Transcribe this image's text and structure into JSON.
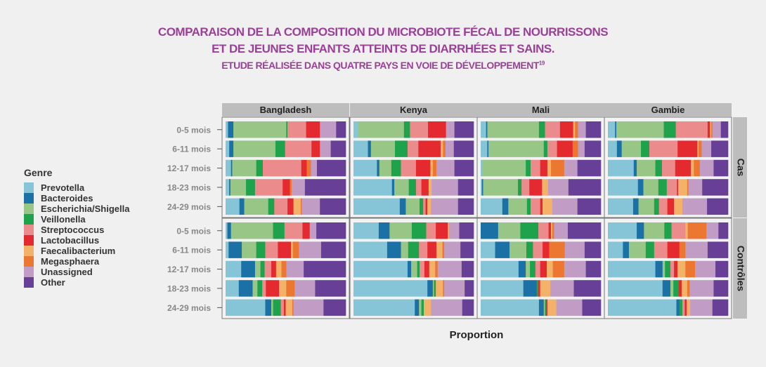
{
  "chart_data": {
    "type": "bar",
    "orientation": "horizontal",
    "stacked": true,
    "title": "COMPARAISON DE LA COMPOSITION DU MICROBIOTE FÉCAL DE NOURRISSONS",
    "title_line2": "ET DE JEUNES ENFANTS ATTEINTS DE DIARRHÉES ET SAINS.",
    "subtitle": "ETUDE RÉALISÉE DANS QUATRE PAYS EN VOIE DE DÉVELOPPEMENT",
    "subtitle_ref": "19",
    "xlabel": "Proportion",
    "xlim": [
      0,
      100
    ],
    "legend_title": "Genre",
    "legend_position": "left",
    "genera": [
      "Prevotella",
      "Bacteroides",
      "Escherichia/Shigella",
      "Veillonella",
      "Streptococcus",
      "Lactobacillus",
      "Faecalibacterium",
      "Megasphaera",
      "Unassigned",
      "Other"
    ],
    "colors": [
      "#86c5d7",
      "#1b70a6",
      "#98c686",
      "#1ea24b",
      "#eb8b8b",
      "#e42a2f",
      "#f4b168",
      "#ec7731",
      "#c19cc4",
      "#673f96"
    ],
    "countries": [
      "Bangladesh",
      "Kenya",
      "Mali",
      "Gambie"
    ],
    "groups": [
      "Cas",
      "Contrôles"
    ],
    "age_groups": [
      "0-5 mois",
      "6-11 mois",
      "12-17 mois",
      "18-23 mois",
      "24-29 mois"
    ],
    "values": {
      "Cas": {
        "Bangladesh": [
          [
            2,
            4.5,
            44,
            1,
            15.5,
            11.5,
            0,
            0,
            13.5,
            8
          ],
          [
            3,
            3.5,
            35,
            8,
            22,
            7,
            0,
            0,
            9,
            12.5
          ],
          [
            4.5,
            1,
            20,
            5.5,
            32,
            4.5,
            0,
            3.5,
            5,
            24
          ],
          [
            3,
            1,
            13,
            7.5,
            23,
            6,
            0,
            1.5,
            11,
            34
          ],
          [
            11.5,
            4,
            20,
            5,
            11,
            5,
            6,
            1,
            15,
            21.5
          ]
        ],
        "Kenya": [
          [
            4,
            0,
            38,
            5,
            15,
            15,
            0,
            0,
            7,
            16
          ],
          [
            12,
            2.5,
            20,
            10.5,
            9,
            18.5,
            2,
            2,
            7,
            16.5
          ],
          [
            19.5,
            2,
            10,
            8,
            12.5,
            12,
            2,
            3,
            15,
            16
          ],
          [
            32,
            2,
            12,
            6,
            4.5,
            6,
            2.5,
            0,
            22,
            13
          ],
          [
            38.5,
            5,
            11.5,
            3,
            2,
            1.5,
            3,
            0,
            22.5,
            13
          ]
        ],
        "Mali": [
          [
            4.5,
            1,
            43,
            5,
            12.5,
            11,
            1.5,
            2.5,
            6.5,
            12.5
          ],
          [
            5.5,
            1,
            46,
            3,
            8,
            13,
            0,
            4.5,
            5.5,
            13.5
          ],
          [
            1.5,
            0,
            36,
            4,
            8,
            6,
            3,
            11,
            11,
            19.5
          ],
          [
            1,
            1,
            29,
            3,
            6.5,
            10.5,
            5,
            0,
            17,
            27
          ],
          [
            18,
            5,
            15.5,
            3,
            8,
            2,
            8,
            0,
            21,
            19.5
          ]
        ],
        "Gambie": [
          [
            6,
            1,
            39.5,
            10,
            26.5,
            2,
            1,
            1,
            7,
            6
          ],
          [
            7.5,
            4,
            16,
            7,
            23.5,
            16.5,
            1,
            2.5,
            8,
            14
          ],
          [
            21.5,
            2.5,
            15.5,
            5.5,
            11,
            13,
            2.5,
            5,
            11.5,
            12
          ],
          [
            25,
            4.5,
            12.5,
            7,
            8.5,
            1,
            7.5,
            1,
            11.5,
            21.5
          ],
          [
            21,
            4.5,
            13,
            4,
            7,
            5.5,
            7,
            0,
            20.5,
            17.5
          ]
        ]
      },
      "Contrôles": {
        "Bangladesh": [
          [
            1.5,
            3,
            35,
            9.5,
            15,
            6,
            0,
            0,
            5.5,
            24.5
          ],
          [
            2.5,
            11,
            12,
            7.5,
            10.5,
            11,
            1.5,
            5,
            18.5,
            20.5
          ],
          [
            13,
            11.5,
            4.5,
            3.5,
            5.5,
            4,
            4.5,
            4,
            14.5,
            35
          ],
          [
            11,
            11.5,
            4,
            4,
            3,
            11,
            6,
            7,
            17,
            25.5
          ],
          [
            33,
            5,
            1.5,
            6.5,
            2.5,
            1.5,
            5.5,
            1,
            25,
            18.5
          ]
        ],
        "Kenya": [
          [
            21,
            9,
            18.5,
            12,
            8,
            10,
            1,
            0,
            8.5,
            12
          ],
          [
            28,
            11.5,
            6,
            9,
            7,
            7.5,
            5,
            1.5,
            13.5,
            11
          ],
          [
            45,
            3,
            5,
            2,
            4,
            4,
            5,
            2,
            20,
            10
          ],
          [
            61.5,
            4.5,
            1,
            1.5,
            0,
            0,
            6,
            1,
            17,
            7.5
          ],
          [
            51,
            3.5,
            2,
            2,
            0,
            0,
            6,
            0,
            26,
            9.5
          ]
        ],
        "Mali": [
          [
            0,
            14.5,
            18.5,
            15,
            8.5,
            2,
            1,
            1.5,
            11.5,
            27.5
          ],
          [
            12,
            12,
            14,
            5.5,
            8,
            5.5,
            0,
            13,
            16.5,
            13.5
          ],
          [
            31.5,
            6,
            3.5,
            4.5,
            4,
            5.5,
            5,
            9.5,
            18,
            12.5
          ],
          [
            35.5,
            11,
            0,
            1.5,
            0,
            1.5,
            8.5,
            0,
            19.5,
            22.5
          ],
          [
            48.5,
            4,
            1,
            1,
            0,
            1,
            7.5,
            0,
            21.5,
            15.5
          ]
        ],
        "Gambie": [
          [
            24,
            6,
            17,
            6,
            11.5,
            0,
            2,
            15.5,
            10,
            8
          ],
          [
            12.5,
            5,
            14,
            7,
            11,
            10,
            0,
            5,
            18.5,
            17
          ],
          [
            39.5,
            6,
            2,
            4.5,
            3,
            3,
            6.5,
            8,
            17,
            10.5
          ],
          [
            45.5,
            6.5,
            2.5,
            4.5,
            0,
            2.5,
            4.5,
            2,
            20,
            12
          ],
          [
            57,
            2.5,
            0,
            2.5,
            2,
            1.5,
            3,
            0,
            18.5,
            13
          ]
        ]
      }
    }
  }
}
